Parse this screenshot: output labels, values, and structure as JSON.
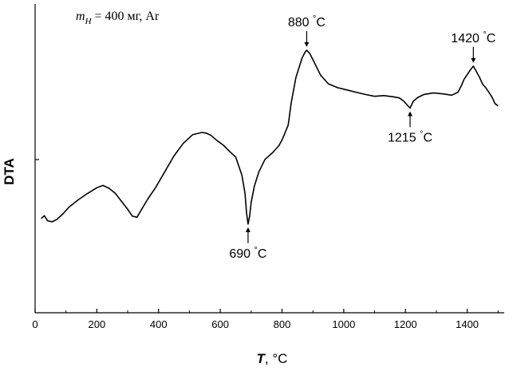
{
  "chart_data": {
    "type": "line",
    "title": "",
    "sample_note": {
      "m": "m",
      "sub": "H",
      "rest": " = 400 мг, Ar"
    },
    "xlabel": {
      "var": "T",
      "unit": ", °C"
    },
    "ylabel": "DTA",
    "xlim": [
      0,
      1520
    ],
    "ylim": [
      0,
      10
    ],
    "x_ticks": [
      0,
      200,
      400,
      600,
      800,
      1000,
      1200,
      1400
    ],
    "y_ticks_labeled": false,
    "grid": false,
    "legend": "none",
    "series": [
      {
        "x": [
          20,
          30,
          40,
          55,
          70,
          90,
          110,
          140,
          170,
          200,
          220,
          240,
          260,
          280,
          300,
          315,
          330,
          345,
          365,
          390,
          420,
          450,
          480,
          510,
          540,
          555,
          570,
          590,
          610,
          630,
          650,
          670,
          680,
          685,
          690,
          695,
          700,
          710,
          725,
          745,
          770,
          790,
          800,
          820,
          830,
          845,
          865,
          875,
          880,
          890,
          905,
          925,
          950,
          980,
          1010,
          1040,
          1070,
          1100,
          1130,
          1160,
          1180,
          1195,
          1205,
          1215,
          1225,
          1240,
          1260,
          1290,
          1320,
          1350,
          1370,
          1380,
          1390,
          1400,
          1410,
          1420,
          1430,
          1440,
          1450,
          1460,
          1470,
          1480,
          1490,
          1500
        ],
        "y": [
          2.5,
          2.62,
          2.4,
          2.35,
          2.45,
          2.7,
          3.0,
          3.32,
          3.6,
          3.85,
          3.95,
          3.82,
          3.6,
          3.25,
          2.9,
          2.6,
          2.55,
          2.9,
          3.35,
          3.85,
          4.55,
          5.25,
          5.8,
          6.18,
          6.28,
          6.25,
          6.15,
          5.92,
          5.72,
          5.45,
          5.2,
          4.4,
          3.6,
          2.75,
          2.25,
          2.6,
          3.2,
          3.9,
          4.55,
          5.1,
          5.4,
          5.7,
          5.95,
          6.6,
          7.6,
          8.7,
          9.55,
          9.82,
          9.9,
          9.75,
          9.35,
          8.8,
          8.42,
          8.25,
          8.15,
          8.05,
          7.95,
          7.87,
          7.9,
          7.85,
          7.8,
          7.65,
          7.5,
          7.35,
          7.65,
          7.82,
          7.95,
          8.02,
          7.98,
          7.92,
          8.05,
          8.3,
          8.62,
          8.82,
          9.02,
          9.2,
          8.95,
          8.7,
          8.4,
          8.25,
          8.05,
          7.85,
          7.55,
          7.45
        ]
      }
    ],
    "annotations": [
      {
        "id": "peak-880",
        "x": 880,
        "y": 9.9,
        "value": "880",
        "unit": "°C",
        "direction": "down",
        "label_pos": "above"
      },
      {
        "id": "peak-1420",
        "x": 1420,
        "y": 9.2,
        "value": "1420",
        "unit": "°C",
        "direction": "down",
        "label_pos": "above"
      },
      {
        "id": "dip-690",
        "x": 690,
        "y": 2.25,
        "value": "690",
        "unit": "°C",
        "direction": "up",
        "label_pos": "below"
      },
      {
        "id": "dip-1215",
        "x": 1215,
        "y": 7.35,
        "value": "1215",
        "unit": "°C",
        "direction": "up",
        "label_pos": "below"
      }
    ]
  }
}
